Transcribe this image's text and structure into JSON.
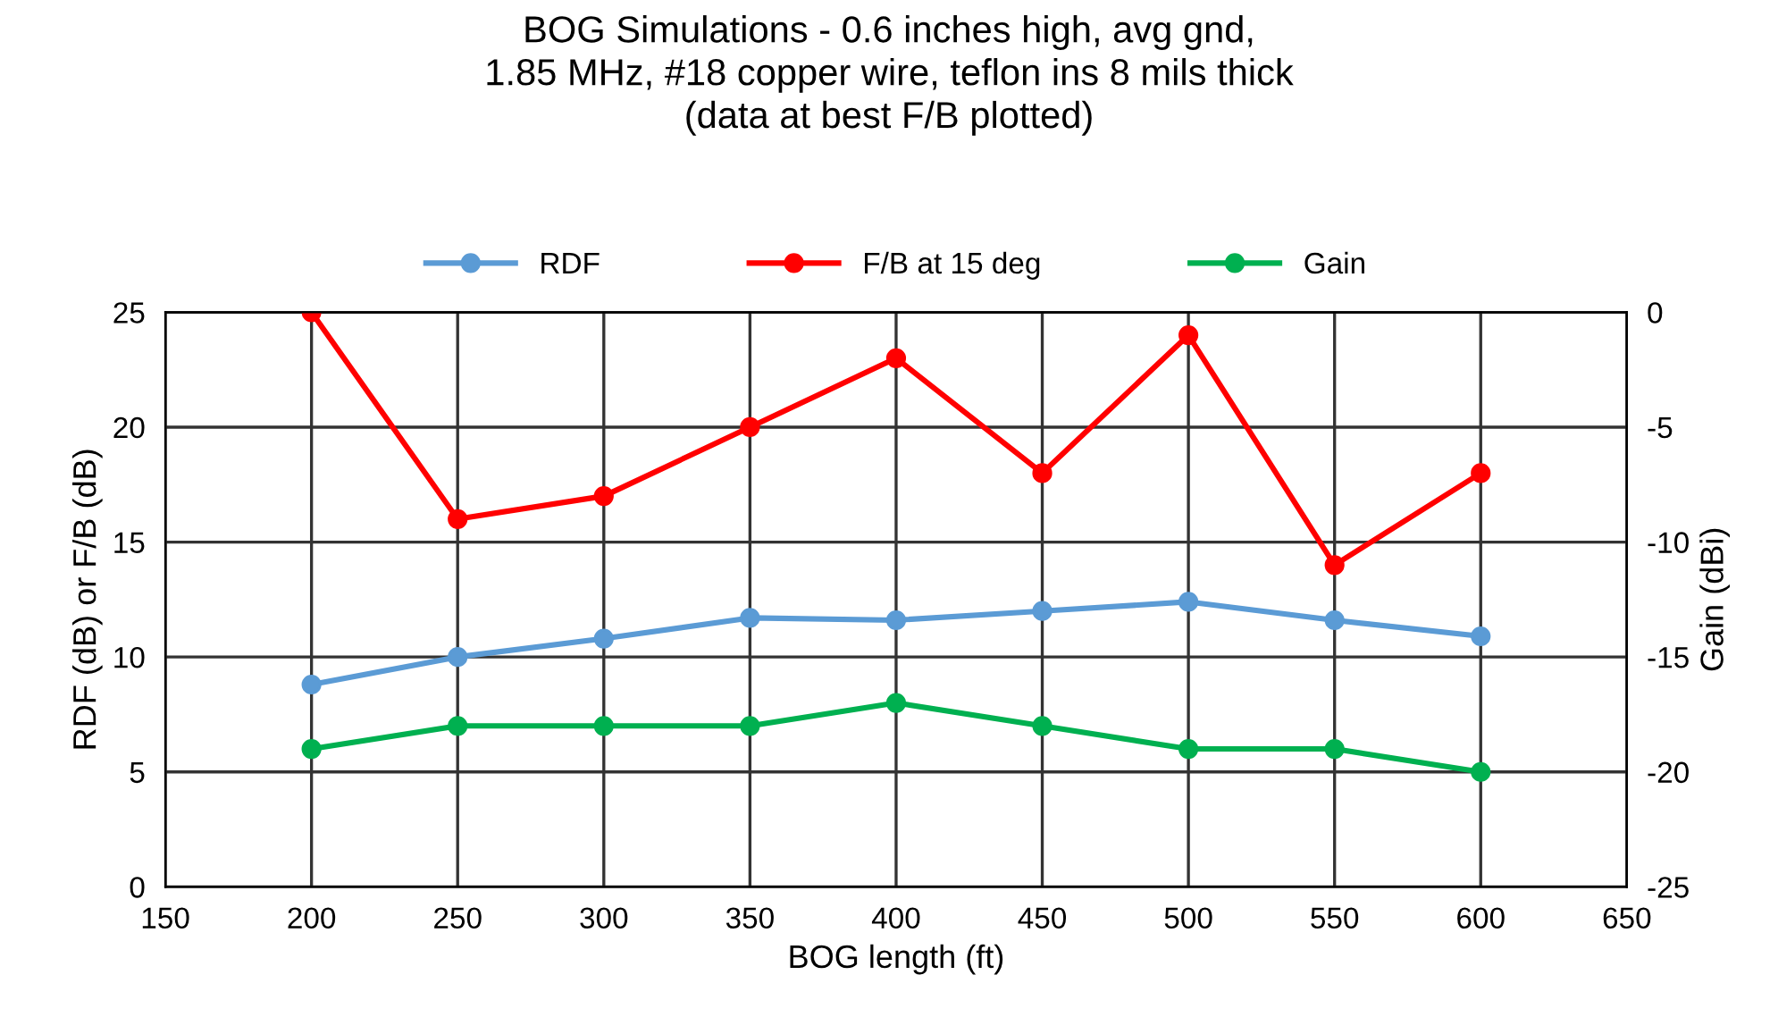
{
  "chart_data": {
    "type": "line",
    "title": "BOG Simulations - 0.6 inches high, avg gnd,\n1.85 MHz, #18 copper wire, teflon ins 8 mils thick\n(data at best F/B plotted)",
    "xlabel": "BOG length (ft)",
    "ylabel": "RDF (dB) or F/B (dB)",
    "y2label": "Gain (dBi)",
    "x": [
      200,
      250,
      300,
      350,
      400,
      450,
      500,
      550,
      600
    ],
    "series": [
      {
        "name": "RDF",
        "color": "#5b9bd5",
        "values": [
          8.8,
          10.0,
          10.8,
          11.7,
          11.6,
          12.0,
          12.4,
          11.6,
          10.9
        ]
      },
      {
        "name": "F/B at 15 deg",
        "color": "#ff0000",
        "values": [
          25,
          16,
          17,
          20,
          23,
          18,
          24,
          14,
          18
        ]
      },
      {
        "name": "Gain",
        "color": "#00b050",
        "axis": "y2",
        "values": [
          -19,
          -18,
          -18,
          -18,
          -17,
          -18,
          -19,
          -19,
          -20
        ]
      }
    ],
    "xlim": [
      150,
      650
    ],
    "xticks": [
      150,
      200,
      250,
      300,
      350,
      400,
      450,
      500,
      550,
      600,
      650
    ],
    "ylim": [
      0,
      25
    ],
    "yticks": [
      0,
      5,
      10,
      15,
      20,
      25
    ],
    "y2lim": [
      -25,
      0
    ],
    "y2ticks": [
      -25,
      -20,
      -15,
      -10,
      -5,
      0
    ],
    "grid": true,
    "legend": "top",
    "marker": "circle",
    "line_style": "solid"
  }
}
